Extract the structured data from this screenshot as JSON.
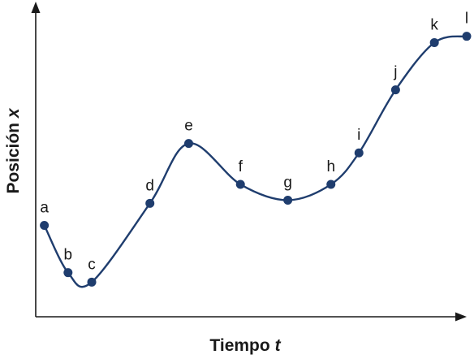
{
  "chart_data": {
    "type": "line",
    "xlabel_text": "Tiempo",
    "xlabel_var": "t",
    "ylabel_text": "Posición",
    "ylabel_var": "x",
    "grid": false,
    "legend": "none",
    "points": [
      {
        "label": "a",
        "x": 2,
        "y": 2.9
      },
      {
        "label": "b",
        "x": 7.5,
        "y": 1.4
      },
      {
        "label": "c",
        "x": 13,
        "y": 1.1
      },
      {
        "label": "d",
        "x": 26.5,
        "y": 3.6
      },
      {
        "label": "e",
        "x": 35.5,
        "y": 5.5
      },
      {
        "label": "f",
        "x": 47.5,
        "y": 4.2
      },
      {
        "label": "g",
        "x": 58.5,
        "y": 3.7
      },
      {
        "label": "h",
        "x": 68.5,
        "y": 4.2
      },
      {
        "label": "i",
        "x": 75,
        "y": 5.2
      },
      {
        "label": "j",
        "x": 83.5,
        "y": 7.2
      },
      {
        "label": "k",
        "x": 92.5,
        "y": 8.7
      },
      {
        "label": "l",
        "x": 100,
        "y": 8.9
      }
    ],
    "xlim": [
      0,
      100
    ],
    "ylim": [
      0,
      10
    ]
  },
  "colors": {
    "curve": "#1f3d6e",
    "axes": "#1a1a1a"
  }
}
